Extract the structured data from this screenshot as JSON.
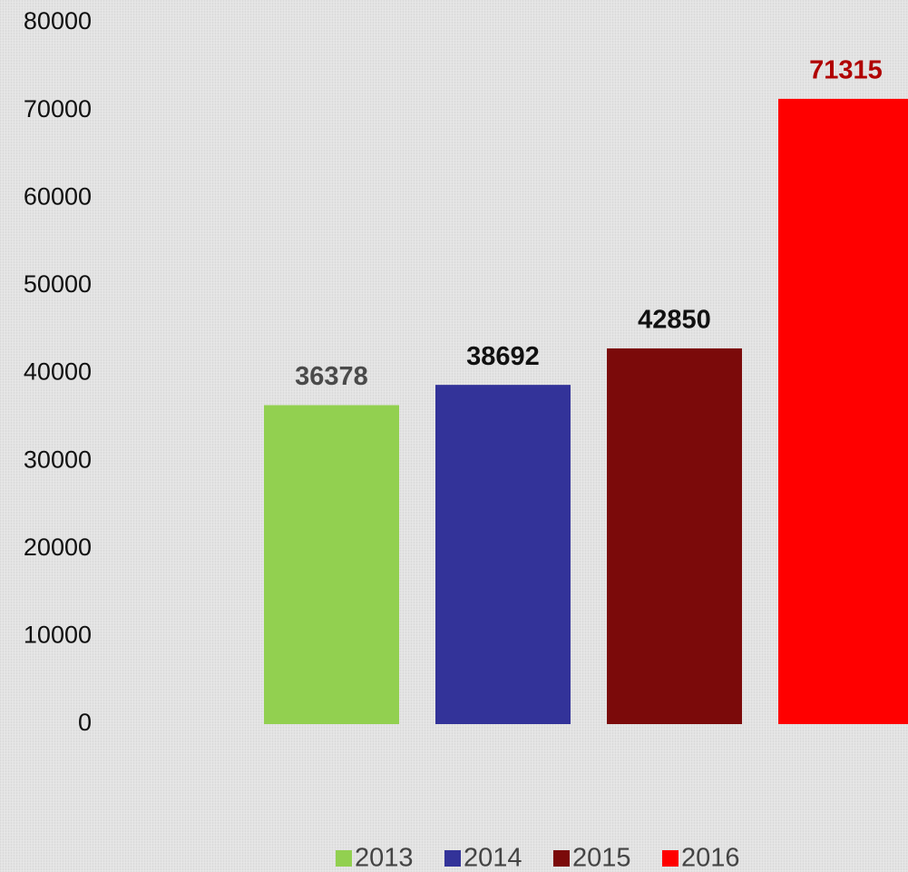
{
  "chart_data": {
    "type": "bar",
    "series": [
      {
        "name": "2013",
        "color": "#92d050",
        "label_color": "#4a4a4a",
        "values": [
          36378
        ]
      },
      {
        "name": "2014",
        "color": "#333399",
        "label_color": "#111111",
        "values": [
          38692
        ]
      },
      {
        "name": "2015",
        "color": "#7b0a0a",
        "label_color": "#111111",
        "values": [
          42850
        ]
      },
      {
        "name": "2016",
        "color": "#ff0000",
        "label_color": "#b00000",
        "values": [
          71315
        ]
      }
    ],
    "ylim": [
      0,
      80000
    ],
    "yticks": [
      0,
      10000,
      20000,
      30000,
      40000,
      50000,
      60000,
      70000,
      80000
    ],
    "grid": false,
    "legend": "bottom"
  }
}
